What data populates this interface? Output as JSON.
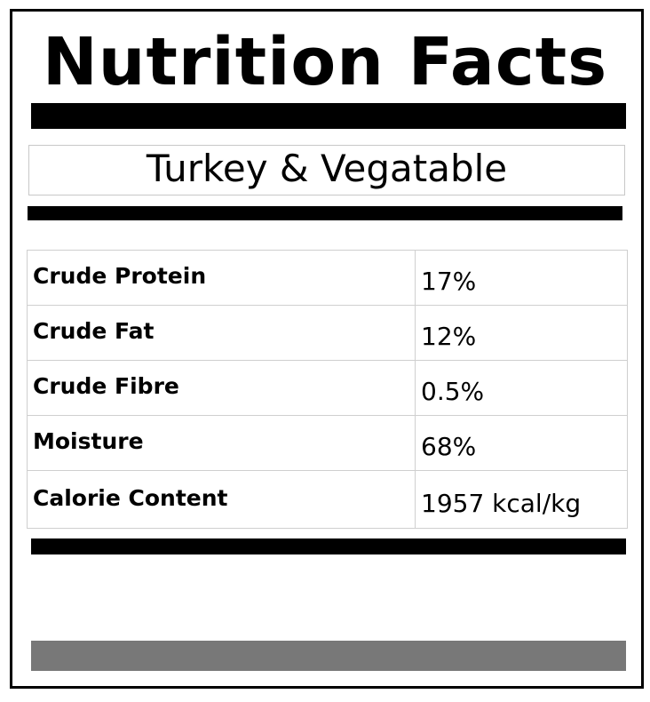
{
  "label": {
    "title": "Nutrition Facts",
    "product_name": "Turkey & Vegatable",
    "nutrients": [
      {
        "name": "Crude Protein",
        "value": "17%"
      },
      {
        "name": "Crude Fat",
        "value": "12%"
      },
      {
        "name": "Crude Fibre",
        "value": "0.5%"
      },
      {
        "name": "Moisture",
        "value": "68%"
      },
      {
        "name": "Calorie Content",
        "value": "1957 kcal/kg"
      }
    ]
  },
  "colors": {
    "border": "#000000",
    "bar": "#000000",
    "footer_bar": "#787878",
    "grid_lines": "#cfcfcf"
  }
}
